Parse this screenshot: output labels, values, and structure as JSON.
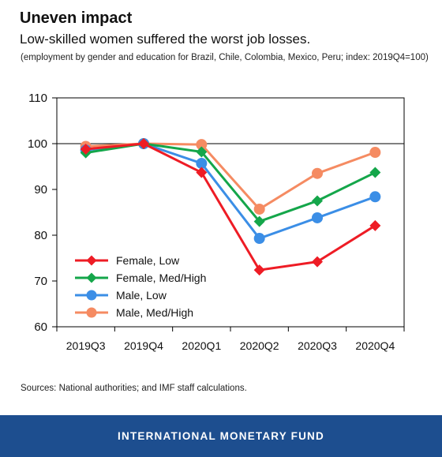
{
  "header": {
    "title": "Uneven impact",
    "subtitle": "Low-skilled women suffered the worst job losses.",
    "note": "(employment by gender and education for Brazil, Chile, Colombia, Mexico, Peru; index: 2019Q4=100)"
  },
  "source": "Sources: National authorities; and IMF staff calculations.",
  "footer": {
    "label": "INTERNATIONAL MONETARY FUND",
    "color": "#1d4e8f"
  },
  "chart_data": {
    "type": "line",
    "categories": [
      "2019Q3",
      "2019Q4",
      "2020Q1",
      "2020Q2",
      "2020Q3",
      "2020Q4"
    ],
    "ylim": [
      60,
      110
    ],
    "yticks": [
      60,
      70,
      80,
      90,
      100,
      110
    ],
    "reference_line": 100,
    "grid": false,
    "legend_position": "bottom-left",
    "series": [
      {
        "name": "Female, Low",
        "color": "#ee1c25",
        "marker": "diamond",
        "values": [
          98.8,
          100,
          93.7,
          72.4,
          74.2,
          82.1
        ]
      },
      {
        "name": "Female, Med/High",
        "color": "#14a64a",
        "marker": "diamond",
        "values": [
          98.0,
          100,
          98.2,
          83.0,
          87.5,
          93.7
        ]
      },
      {
        "name": "Male, Low",
        "color": "#3b8ee6",
        "marker": "circle",
        "values": [
          98.6,
          100,
          95.7,
          79.3,
          83.8,
          88.4
        ]
      },
      {
        "name": "Male, Med/High",
        "color": "#f58b62",
        "marker": "circle",
        "values": [
          99.4,
          100,
          99.8,
          85.7,
          93.5,
          98.1
        ]
      }
    ]
  }
}
